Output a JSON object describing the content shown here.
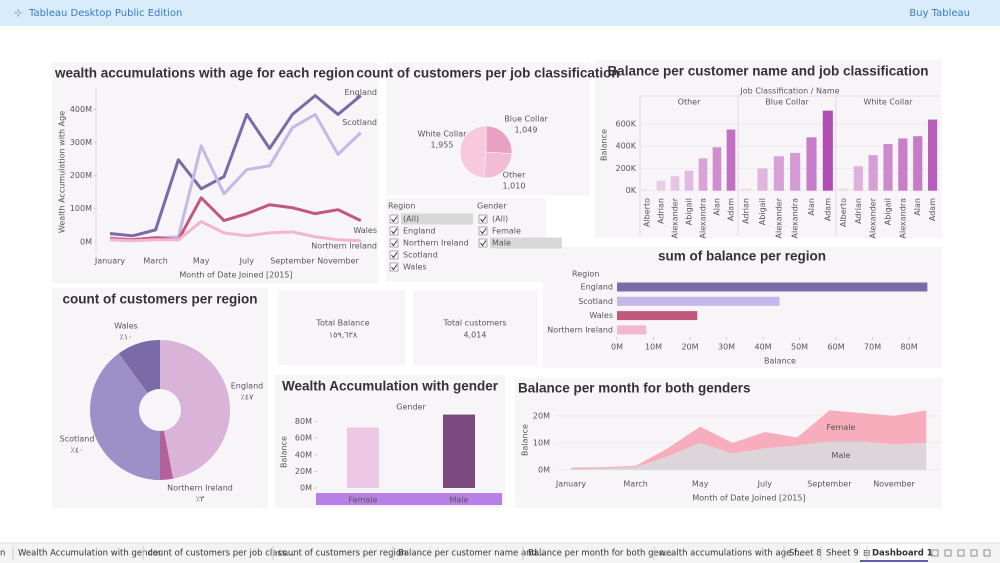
{
  "header": {
    "app": "Tableau Desktop Public Edition",
    "action": "Buy Tableau"
  },
  "chart_data": [
    {
      "type": "line",
      "title": "wealth accumulations with age for each region",
      "x_label": "Month of Date Joined [2015]",
      "y_label": "Wealth Accumulation with Age",
      "categories": [
        "January",
        null,
        "March",
        null,
        "May",
        null,
        "July",
        null,
        "September",
        null,
        "November",
        null
      ],
      "series": [
        {
          "name": "England",
          "color": "#7b6aa8",
          "values": [
            25,
            18,
            36,
            248,
            160,
            197,
            385,
            282,
            385,
            442,
            385,
            442
          ]
        },
        {
          "name": "Scotland",
          "color": "#c5b8e8",
          "values": [
            12,
            6,
            12,
            15,
            290,
            145,
            218,
            230,
            345,
            385,
            264,
            330
          ]
        },
        {
          "name": "Wales",
          "color": "#c0587e",
          "values": [
            9,
            6,
            12,
            6,
            133,
            64,
            85,
            112,
            103,
            85,
            97,
            64
          ]
        },
        {
          "name": "Northern Ireland",
          "color": "#f4b6cc",
          "values": [
            6,
            3,
            6,
            6,
            61,
            27,
            18,
            27,
            30,
            15,
            6,
            3
          ]
        }
      ],
      "ylim": [
        -40,
        465
      ],
      "yticks": [
        {
          "value": 0,
          "label": "0M"
        },
        {
          "value": 100,
          "label": "100M"
        },
        {
          "value": 200,
          "label": "200M"
        },
        {
          "value": 300,
          "label": "300M"
        },
        {
          "value": 400,
          "label": "400M"
        }
      ]
    },
    {
      "type": "pie",
      "title": "count of customers per job classification",
      "categories": [
        "Blue Collar",
        "Other",
        "White Collar"
      ],
      "values": [
        1049,
        1010,
        1955
      ],
      "value_labels": [
        "1,049",
        "1,010",
        "1,955"
      ],
      "colors": [
        "#e7a2c3",
        "#f2bcd5",
        "#f8c8dc"
      ]
    },
    {
      "type": "panel-bar",
      "title": "Balance per customer name and job classification",
      "header": "Job Classification / Name",
      "y_label": "Balance",
      "panels": [
        {
          "name": "Other",
          "categories": [
            "Alberto",
            "Adrian",
            "Alexander",
            "Abigail",
            "Alexandra",
            "Alan",
            "Adam"
          ],
          "values": [
            10,
            90,
            130,
            180,
            290,
            390,
            550
          ]
        },
        {
          "name": "Blue Collar",
          "categories": [
            "Adrian",
            "Abigail",
            "Alexander",
            "Alexandra",
            "Alan",
            "Adam"
          ],
          "values": [
            20,
            200,
            310,
            340,
            480,
            720
          ]
        },
        {
          "name": "White Collar",
          "categories": [
            "Alberto",
            "Adrian",
            "Alexander",
            "Abigail",
            "Alexandra",
            "Alan",
            "Adam"
          ],
          "values": [
            20,
            220,
            320,
            420,
            470,
            490,
            640
          ]
        }
      ],
      "color_range": [
        "#f1dcee",
        "#b14db3"
      ],
      "ylim": [
        -30,
        780
      ],
      "yticks": [
        {
          "value": 0,
          "label": "0K"
        },
        {
          "value": 200,
          "label": "200K"
        },
        {
          "value": 400,
          "label": "400K"
        },
        {
          "value": 600,
          "label": "600K"
        }
      ]
    },
    {
      "type": "hbar",
      "title": "sum of balance per region",
      "y_header": "Region",
      "x_label": "Balance",
      "categories": [
        "England",
        "Scotland",
        "Wales",
        "Northern Ireland"
      ],
      "values": [
        85,
        44.5,
        22,
        8
      ],
      "colors": [
        "#7b6aa8",
        "#c5b8e8",
        "#c0587e",
        "#f4b6cc"
      ],
      "xlim": [
        0,
        86
      ],
      "xticks": [
        {
          "value": 0,
          "label": "0M"
        },
        {
          "value": 10,
          "label": "10M"
        },
        {
          "value": 20,
          "label": "20M"
        },
        {
          "value": 30,
          "label": "30M"
        },
        {
          "value": 40,
          "label": "40M"
        },
        {
          "value": 50,
          "label": "50M"
        },
        {
          "value": 60,
          "label": "60M"
        },
        {
          "value": 70,
          "label": "70M"
        },
        {
          "value": 80,
          "label": "80M"
        }
      ]
    },
    {
      "type": "donut",
      "title": "count of customers per region",
      "categories": [
        "England",
        "Northern Ireland",
        "Scotland",
        "Wales"
      ],
      "values": [
        47,
        3,
        40,
        10
      ],
      "value_labels": [
        "٪٤٧",
        "٪٣",
        "٪٤٠",
        "٪١٠"
      ],
      "colors": [
        "#d9b4d8",
        "#b3619a",
        "#9d8fc8",
        "#7b6aa8"
      ]
    },
    {
      "type": "bar",
      "title": "Wealth Accumulation with gender",
      "x_header": "Gender",
      "y_label": "Balance",
      "categories": [
        "Female",
        "Male"
      ],
      "values": [
        73,
        88.5
      ],
      "colors": [
        "#ecc8e4",
        "#7b4a7e"
      ],
      "ylim": [
        0,
        94
      ],
      "yticks": [
        {
          "value": 0,
          "label": "0M"
        },
        {
          "value": 20,
          "label": "20M"
        },
        {
          "value": 40,
          "label": "40M"
        },
        {
          "value": 60,
          "label": "60M"
        },
        {
          "value": 80,
          "label": "80M"
        }
      ]
    },
    {
      "type": "area",
      "title": "Balance per month for both genders",
      "stacked": true,
      "x_label": "Month of Date Joined [2015]",
      "y_label": "Balance",
      "categories": [
        "January",
        null,
        "March",
        null,
        "May",
        null,
        "July",
        null,
        "September",
        null,
        "November",
        null
      ],
      "series": [
        {
          "name": "Male",
          "color": "#dcd5d9",
          "values": [
            0.3,
            0.5,
            1,
            5,
            10,
            6,
            8,
            9,
            10.5,
            10.5,
            9.5,
            10
          ]
        },
        {
          "name": "Female",
          "color": "#f7adbb",
          "values": [
            0.5,
            0.5,
            0.5,
            3,
            6,
            4,
            6,
            3,
            11.5,
            10.5,
            10.5,
            12
          ]
        }
      ],
      "ylim": [
        -3,
        24
      ],
      "yticks": [
        {
          "value": 0,
          "label": "0M"
        },
        {
          "value": 10,
          "label": "10M"
        },
        {
          "value": 20,
          "label": "20M"
        }
      ]
    }
  ],
  "filters": [
    {
      "title": "Region",
      "options": [
        "(All)",
        "England",
        "Northern Ireland",
        "Scotland",
        "Wales"
      ]
    },
    {
      "title": "Gender",
      "options": [
        "(All)",
        "Female",
        "Male"
      ]
    }
  ],
  "kpis": [
    {
      "label": "Total Balance",
      "value": "١٥٩,٦٣٨"
    },
    {
      "label": "Total customers",
      "value": "4,014"
    }
  ],
  "tabs": [
    "n",
    "Wealth Accumulation with gender",
    "count of customers per job class...",
    "count of customers per region",
    "Balance per customer name and...",
    "Balance per month for both gen...",
    "wealth accumulations with age f...",
    "Sheet 8",
    "Sheet 9",
    "Dashboard 1"
  ]
}
